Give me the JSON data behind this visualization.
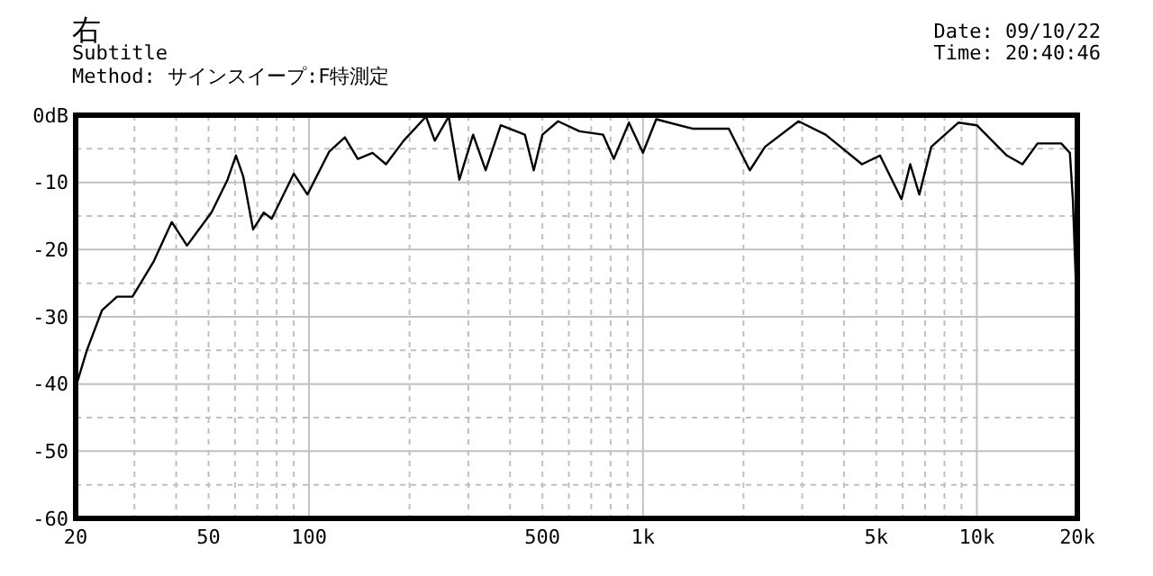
{
  "chart_data": {
    "type": "line",
    "title": "右",
    "subtitle": "Subtitle",
    "annotations": [
      "Method:  サインスイープ:F特測定",
      "Date: 09/10/22",
      "Time: 20:40:46"
    ],
    "log": "x",
    "grid": true,
    "marker": "none",
    "line_style": "solid",
    "xlim": [
      20,
      20000
    ],
    "xticks": [
      20,
      {
        "value": 30,
        "label": null
      },
      {
        "value": 40,
        "label": null
      },
      50,
      {
        "value": 60,
        "label": null
      },
      {
        "value": 70,
        "label": null
      },
      {
        "value": 80,
        "label": null
      },
      {
        "value": 90,
        "label": null
      },
      100,
      {
        "value": 200,
        "label": null
      },
      {
        "value": 300,
        "label": null
      },
      {
        "value": 400,
        "label": null
      },
      500,
      {
        "value": 600,
        "label": null
      },
      {
        "value": 700,
        "label": null
      },
      {
        "value": 800,
        "label": null
      },
      {
        "value": 900,
        "label": null
      },
      {
        "value": 1000,
        "label": "1k"
      },
      {
        "value": 2000,
        "label": null
      },
      {
        "value": 3000,
        "label": null
      },
      {
        "value": 4000,
        "label": null
      },
      {
        "value": 5000,
        "label": "5k"
      },
      {
        "value": 6000,
        "label": null
      },
      {
        "value": 7000,
        "label": null
      },
      {
        "value": 8000,
        "label": null
      },
      {
        "value": 9000,
        "label": null
      },
      {
        "value": 10000,
        "label": "10k"
      },
      {
        "value": 20000,
        "label": "20k"
      }
    ],
    "ylim": [
      -60,
      0
    ],
    "yticks": [
      -60,
      {
        "value": -55,
        "label": null
      },
      -50,
      {
        "value": -45,
        "label": null
      },
      -40,
      {
        "value": -35,
        "label": null
      },
      -30,
      {
        "value": -25,
        "label": null
      },
      -20,
      {
        "value": -15,
        "label": null
      },
      -10,
      {
        "value": -5,
        "label": null
      },
      {
        "value": 0,
        "label": "0dB"
      }
    ],
    "series": [
      {
        "color": "#000000",
        "x": [
          20,
          21.6,
          24,
          26.6,
          29.6,
          34.3,
          38.8,
          43.1,
          51,
          57,
          60.4,
          63.5,
          68,
          73.2,
          77.3,
          90,
          98.9,
          115,
          128,
          140,
          155,
          170,
          192,
          224,
          238,
          262,
          282,
          310,
          338,
          375,
          443,
          471,
          500,
          557,
          646,
          760,
          818,
          908,
          1000,
          1096,
          1408,
          1808,
          2090,
          2321,
          2924,
          3524,
          4529,
          5128,
          5947,
          6318,
          6726,
          7305,
          8815,
          10000,
          12300,
          13700,
          15200,
          17900,
          19000,
          19400,
          19800,
          20000
        ],
        "values": [
          -40.5,
          -35,
          -29,
          -27,
          -27,
          -21.7,
          -15.9,
          -19.4,
          -14.5,
          -9.6,
          -6,
          -9.1,
          -17,
          -14.5,
          -15.4,
          -8.7,
          -11.8,
          -5.4,
          -3.3,
          -6.5,
          -5.6,
          -7.3,
          -3.8,
          -0.2,
          -3.8,
          -0.2,
          -9.6,
          -2.9,
          -8.2,
          -1.5,
          -2.9,
          -8.2,
          -2.9,
          -0.9,
          -2.4,
          -2.9,
          -6.5,
          -1.1,
          -5.6,
          -0.6,
          -2,
          -2,
          -8.2,
          -4.7,
          -0.9,
          -2.9,
          -7.3,
          -6,
          -12.5,
          -7.3,
          -11.8,
          -4.7,
          -1.1,
          -1.5,
          -6,
          -7.3,
          -4.2,
          -4.2,
          -5.6,
          -12.7,
          -25,
          -36
        ]
      }
    ]
  }
}
